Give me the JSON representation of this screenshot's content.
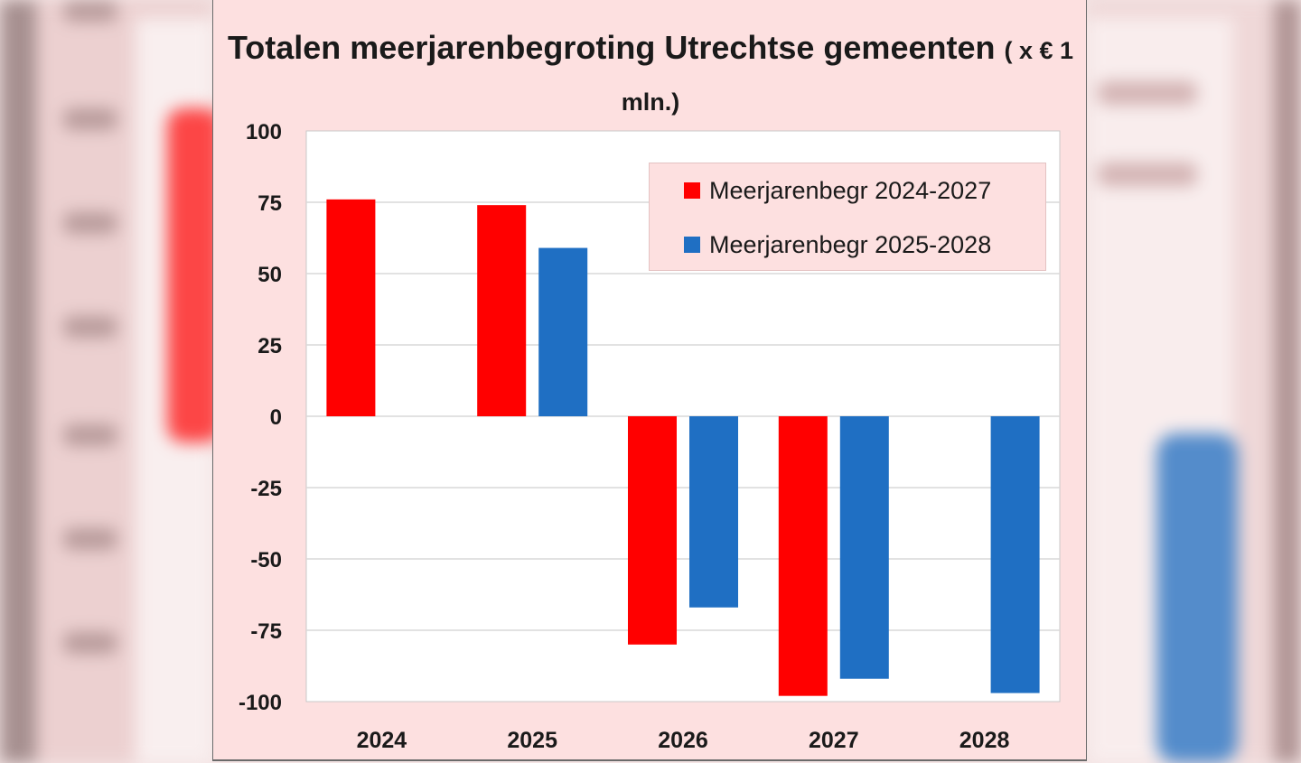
{
  "chart_data": {
    "type": "bar",
    "title": "Totalen meerjarenbegroting Utrechtse gemeenten",
    "title_units": "( x € 1 mln.)",
    "categories": [
      "2024",
      "2025",
      "2026",
      "2027",
      "2028"
    ],
    "series": [
      {
        "name": "Meerjarenbegr 2024-2027",
        "color": "#ff0000",
        "values": [
          76,
          74,
          -80,
          -98,
          null
        ]
      },
      {
        "name": "Meerjarenbegr 2025-2028",
        "color": "#1f6fc3",
        "values": [
          null,
          59,
          -67,
          -92,
          -97
        ]
      }
    ],
    "ylim": [
      -100,
      100
    ],
    "yticks": [
      100,
      75,
      50,
      25,
      0,
      -25,
      -50,
      -75,
      -100
    ],
    "ytick_labels": [
      "100",
      "75",
      "50",
      "25",
      "0",
      "-25",
      "-50",
      "-75",
      "-100"
    ],
    "xlabel": "",
    "ylabel": "",
    "grid": true,
    "legend_position": "top-right"
  }
}
